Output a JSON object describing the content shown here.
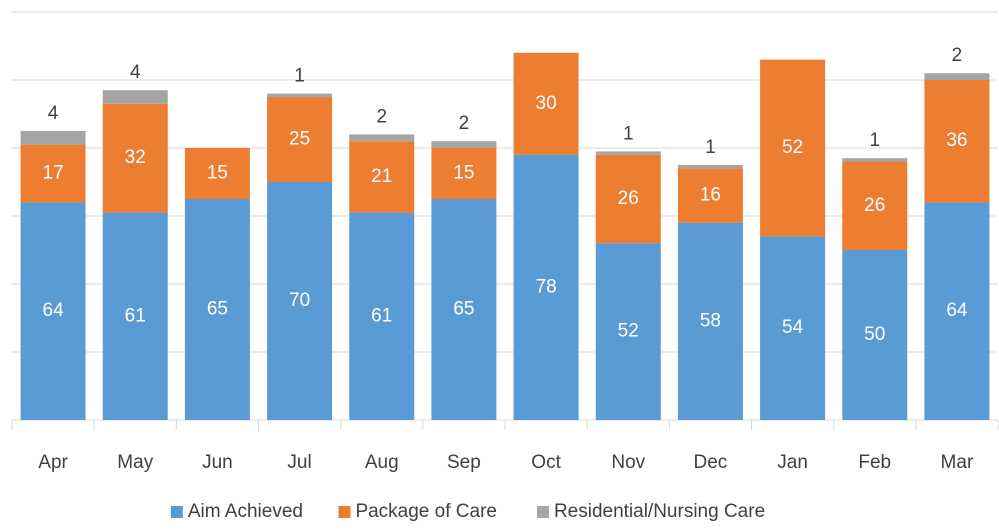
{
  "chart_data": {
    "type": "stacked_bar",
    "categories": [
      "Apr",
      "May",
      "Jun",
      "Jul",
      "Aug",
      "Sep",
      "Oct",
      "Nov",
      "Dec",
      "Jan",
      "Feb",
      "Mar"
    ],
    "series": [
      {
        "name": "Aim Achieved",
        "color": "#5b9bd5",
        "values": [
          64,
          61,
          65,
          70,
          61,
          65,
          78,
          52,
          58,
          54,
          50,
          64
        ]
      },
      {
        "name": "Package of Care",
        "color": "#ed7d31",
        "values": [
          17,
          32,
          15,
          25,
          21,
          15,
          30,
          26,
          16,
          52,
          26,
          36
        ]
      },
      {
        "name": "Residential/Nursing Care",
        "color": "#a5a5a5",
        "values": [
          4,
          4,
          null,
          1,
          2,
          2,
          null,
          1,
          1,
          null,
          1,
          2
        ]
      }
    ],
    "ylim": [
      0,
      120
    ],
    "yticks": [
      0,
      20,
      40,
      60,
      80,
      100,
      120
    ],
    "grid": true,
    "legend": "bottom"
  }
}
